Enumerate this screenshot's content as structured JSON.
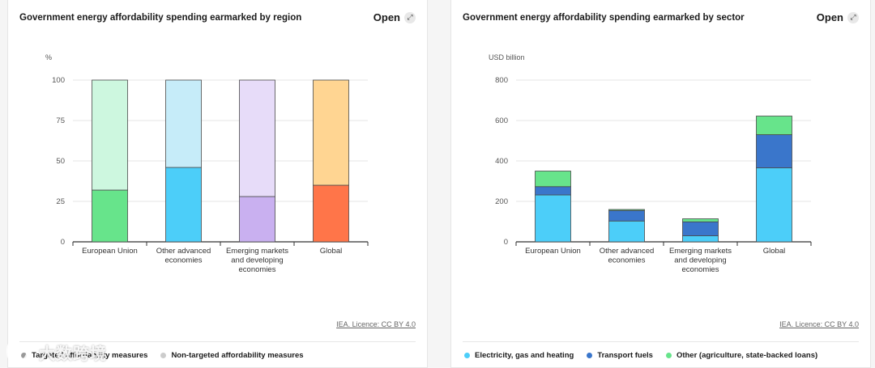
{
  "left_card": {
    "title": "Government energy affordability spending earmarked by region",
    "open_label": "Open",
    "licence": "IEA. Licence: CC BY 4.0",
    "legend": [
      {
        "label": "Targeted affordability measures",
        "color": "#999999"
      },
      {
        "label": "Non-targeted affordability measures",
        "color": "#cccccc"
      }
    ]
  },
  "right_card": {
    "title": "Government energy affordability spending earmarked by sector",
    "open_label": "Open",
    "licence": "IEA. Licence: CC BY 4.0",
    "legend": [
      {
        "label": "Electricity, gas and heating",
        "color": "#4ccef9"
      },
      {
        "label": "Transport fuels",
        "color": "#3a76cb"
      },
      {
        "label": "Other (agriculture, state-backed loans)",
        "color": "#67e48b"
      }
    ]
  },
  "watermark": "大数跨境",
  "chart_data": [
    {
      "type": "bar",
      "stacked": true,
      "ylabel": "%",
      "ylim": [
        0,
        100
      ],
      "yticks": [
        0,
        25,
        50,
        75,
        100
      ],
      "categories": [
        [
          "European Union"
        ],
        [
          "Other advanced",
          "economies"
        ],
        [
          "Emerging markets",
          "and developing",
          "economies"
        ],
        [
          "Global"
        ]
      ],
      "series": [
        {
          "name": "Targeted affordability measures",
          "values": [
            32,
            46,
            28,
            35
          ],
          "colors": [
            "#67e48b",
            "#4ccef9",
            "#c9b0f0",
            "#ff7549"
          ]
        },
        {
          "name": "Non-targeted affordability measures",
          "values": [
            68,
            54,
            72,
            65
          ],
          "colors": [
            "#cdf7df",
            "#c6ecf9",
            "#e7dcf9",
            "#ffd592"
          ]
        }
      ]
    },
    {
      "type": "bar",
      "stacked": true,
      "ylabel": "USD billion",
      "ylim": [
        0,
        800
      ],
      "yticks": [
        0,
        200,
        400,
        600,
        800
      ],
      "categories": [
        [
          "European Union"
        ],
        [
          "Other advanced",
          "economies"
        ],
        [
          "Emerging markets",
          "and developing",
          "economies"
        ],
        [
          "Global"
        ]
      ],
      "series": [
        {
          "name": "Electricity, gas and heating",
          "values": [
            232,
            103,
            30,
            366
          ],
          "color": "#4ccef9"
        },
        {
          "name": "Transport fuels",
          "values": [
            41,
            52,
            69,
            164
          ],
          "color": "#3a76cb"
        },
        {
          "name": "Other (agriculture, state-backed loans)",
          "values": [
            77,
            5,
            15,
            92
          ],
          "color": "#67e48b"
        }
      ]
    }
  ]
}
